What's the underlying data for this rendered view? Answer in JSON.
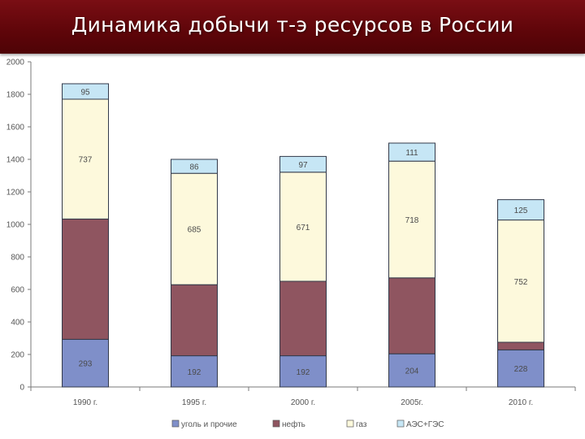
{
  "slide": {
    "title": "Динамика добычи т-э ресурсов в России"
  },
  "chart_data": {
    "type": "bar",
    "stacked": true,
    "categories": [
      "1990 г.",
      "1995 г.",
      "2000 г.",
      "2005г.",
      "2010 г."
    ],
    "series": [
      {
        "name": "уголь и прочие",
        "color": "#7f8fc9",
        "values": [
          293,
          192,
          192,
          204,
          228
        ],
        "labels": [
          "293",
          "192",
          "192",
          "204",
          "228"
        ]
      },
      {
        "name": "нефть",
        "color": "#8f5560",
        "values": [
          740,
          437,
          458,
          467,
          47
        ],
        "labels": [
          "",
          "",
          "",
          "",
          "47"
        ]
      },
      {
        "name": "газ",
        "color": "#fdf9dc",
        "values": [
          737,
          685,
          671,
          718,
          752
        ],
        "labels": [
          "737",
          "685",
          "671",
          "718",
          "752"
        ]
      },
      {
        "name": "АЭС+ГЭС",
        "color": "#c6e6f5",
        "values": [
          95,
          86,
          97,
          111,
          125
        ],
        "labels": [
          "95",
          "86",
          "97",
          "111",
          "125"
        ]
      }
    ],
    "y_ticks": [
      0,
      200,
      400,
      600,
      800,
      1000,
      1200,
      1400,
      1600,
      1800,
      2000
    ],
    "ylim": [
      0,
      2000
    ],
    "xlabel": "",
    "ylabel": "",
    "grid": false,
    "legend_position": "bottom"
  }
}
